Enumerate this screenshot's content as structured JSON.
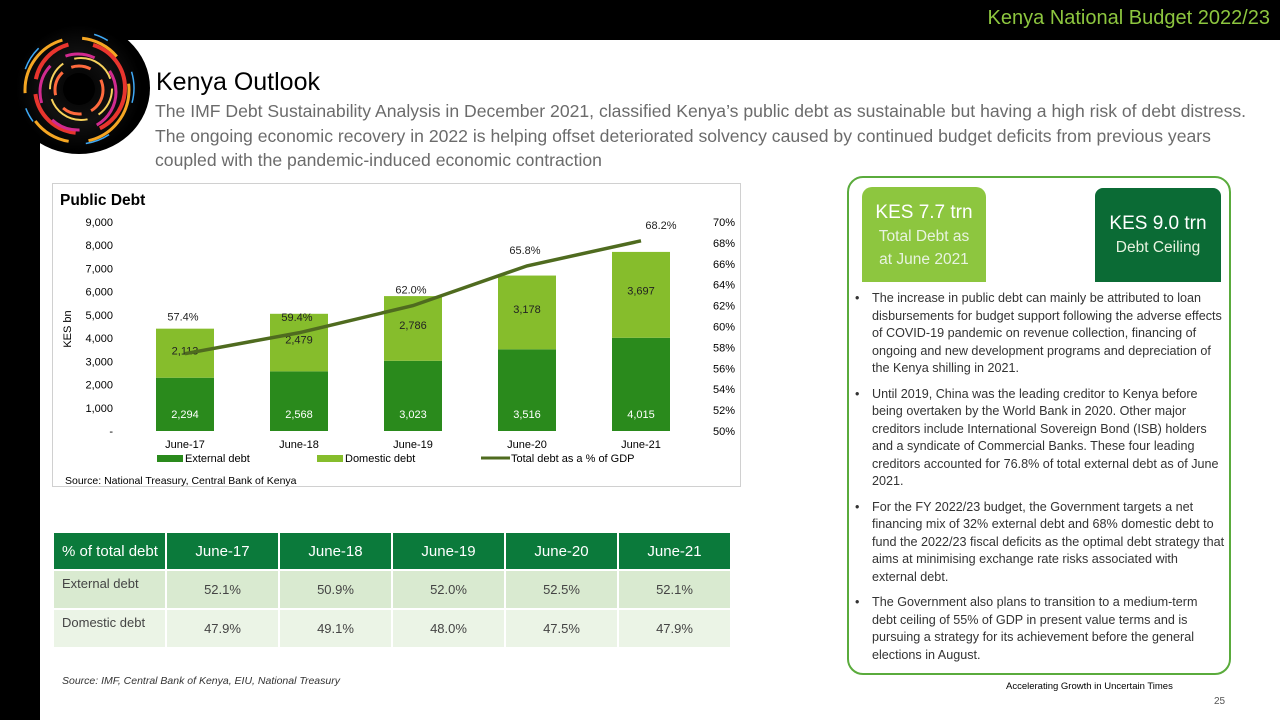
{
  "header": {
    "budget_title": "Kenya National Budget 2022/23"
  },
  "page": {
    "title": "Kenya Outlook",
    "intro": "The IMF Debt Sustainability Analysis in December 2021, classified Kenya’s public debt as sustainable but having a high risk of debt distress. The ongoing economic recovery in 2022 is helping offset deteriorated solvency caused by continued budget deficits from previous years coupled with the pandemic-induced economic contraction",
    "page_number": "25",
    "footer_tagline": "Accelerating Growth in Uncertain Times"
  },
  "chart_data": {
    "type": "bar",
    "stacked": true,
    "title": "Public Debt",
    "ylabel": "KES bn",
    "categories": [
      "June-17",
      "June-18",
      "June-19",
      "June-20",
      "June-21"
    ],
    "ylim": [
      0,
      9000
    ],
    "y_ticks": [
      "-",
      "1,000",
      "2,000",
      "3,000",
      "4,000",
      "5,000",
      "6,000",
      "7,000",
      "8,000",
      "9,000"
    ],
    "y2lim": [
      50,
      70
    ],
    "y2_ticks": [
      "50%",
      "52%",
      "54%",
      "56%",
      "58%",
      "60%",
      "62%",
      "64%",
      "66%",
      "68%",
      "70%"
    ],
    "series": [
      {
        "name": "External debt",
        "values": [
          2294,
          2568,
          3023,
          3516,
          4015
        ],
        "labels": [
          "2,294",
          "2,568",
          "3,023",
          "3,516",
          "4,015"
        ],
        "color": "#2a8a1c"
      },
      {
        "name": "Domestic debt",
        "values": [
          2113,
          2479,
          2786,
          3178,
          3697
        ],
        "labels": [
          "2,113",
          "2,479",
          "2,786",
          "3,178",
          "3,697"
        ],
        "color": "#86bd2c"
      },
      {
        "name": "Total debt as a % of GDP",
        "axis": "secondary",
        "type": "line",
        "values": [
          57.4,
          59.4,
          62.0,
          65.8,
          68.2
        ],
        "labels": [
          "57.4%",
          "59.4%",
          "62.0%",
          "65.8%",
          "68.2%"
        ],
        "color": "#4f6b1f"
      }
    ],
    "legend_position": "bottom",
    "source": "Source: National Treasury, Central Bank of Kenya"
  },
  "debt_table": {
    "header": [
      "% of total debt",
      "June-17",
      "June-18",
      "June-19",
      "June-20",
      "June-21"
    ],
    "rows": [
      [
        "External debt",
        "52.1%",
        "50.9%",
        "52.0%",
        "52.5%",
        "52.1%"
      ],
      [
        "Domestic debt",
        "47.9%",
        "49.1%",
        "48.0%",
        "47.5%",
        "47.9%"
      ]
    ],
    "source": "Source: IMF, Central Bank of Kenya, EIU, National Treasury"
  },
  "side_panel": {
    "total_debt": {
      "value": "KES 7.7 trn",
      "label_line1": "Total Debt as",
      "label_line2": "at June 2021"
    },
    "debt_ceiling": {
      "value": "KES 9.0 trn",
      "label": "Debt Ceiling"
    },
    "bullets": [
      "The increase in public debt can mainly be attributed to loan disbursements for budget support following the adverse effects of COVID-19 pandemic on revenue collection, financing of ongoing and new development programs and depreciation of the Kenya shilling in 2021.",
      "Until 2019, China was the leading creditor to Kenya before being overtaken by the World Bank in 2020. Other major creditors  include International Sovereign Bond (ISB) holders and a syndicate of Commercial Banks. These four leading creditors accounted for 76.8% of total external debt as of June 2021.",
      "For the FY 2022/23 budget, the Government targets a net financing mix of 32% external debt and 68% domestic debt to fund the 2022/23 fiscal deficits as the optimal debt strategy that aims at minimising exchange rate risks associated with external debt.",
      "The Government also plans to transition to a medium-term debt ceiling of 55% of GDP in present value terms and is pursuing a strategy for its achievement before the general elections in August."
    ]
  },
  "colors": {
    "brand_green": "#8dc63f",
    "dark_green": "#0b7a3b",
    "panel_border": "#5aab3c"
  }
}
